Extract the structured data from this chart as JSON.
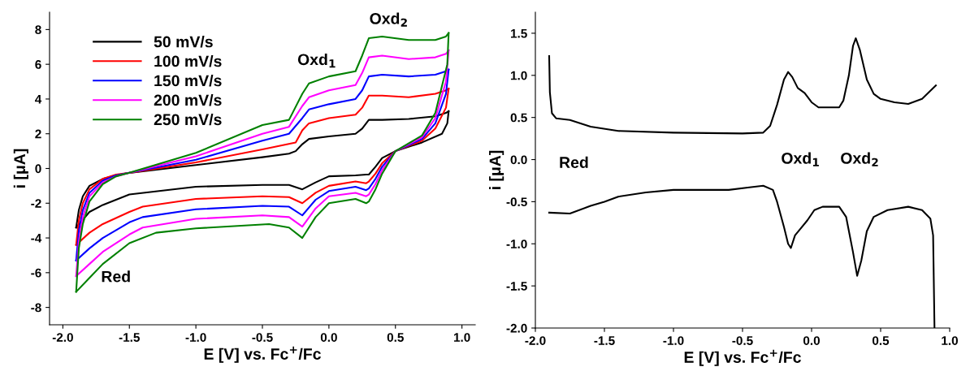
{
  "chart_data": [
    {
      "type": "line",
      "xlabel": "E [V] vs. Fc$^{+}$/Fc",
      "ylabel": "i [μA]",
      "xlim": [
        -2.1,
        1.1
      ],
      "ylim": [
        -9,
        9
      ],
      "xticks": [
        {
          "value": -2.0,
          "label": "-2.0"
        },
        {
          "value": -1.5,
          "label": "-1.5"
        },
        {
          "value": -1.0,
          "label": "-1.0"
        },
        {
          "value": -0.5,
          "label": "-0.5"
        },
        {
          "value": 0.0,
          "label": "0.0"
        },
        {
          "value": 0.5,
          "label": "0.5"
        },
        {
          "value": 1.0,
          "label": "1.0"
        }
      ],
      "yticks": [
        -8,
        -6,
        -4,
        -2,
        0,
        2,
        4,
        6,
        8
      ],
      "legend": "top left",
      "grid": false,
      "marker": "none",
      "line_style": "solid",
      "annotations": [
        "Oxd$_{1}$",
        "Oxd$_{2}$",
        "Red"
      ],
      "series": [
        {
          "name": "50 mV/s",
          "color": "#000000",
          "x": [
            -1.9,
            -1.88,
            -1.85,
            -1.8,
            -1.7,
            -1.6,
            -1.5,
            -1.0,
            -0.5,
            -0.3,
            -0.25,
            -0.2,
            -0.15,
            0.0,
            0.2,
            0.25,
            0.3,
            0.4,
            0.6,
            0.8,
            0.88,
            0.9
          ],
          "values": [
            -3.4,
            -2.4,
            -1.6,
            -1.0,
            -0.6,
            -0.4,
            -0.25,
            0.2,
            0.65,
            0.85,
            1.0,
            1.4,
            1.7,
            1.85,
            2.0,
            2.3,
            2.8,
            2.8,
            2.85,
            3.0,
            3.2,
            3.3
          ]
        },
        {
          "color": "#000000",
          "x": [
            0.9,
            0.89,
            0.85,
            0.7,
            0.5,
            0.4,
            0.35,
            0.3,
            0.28,
            0.2,
            0.0,
            -0.1,
            -0.2,
            -0.3,
            -0.5,
            -1.0,
            -1.5,
            -1.7,
            -1.8,
            -1.9
          ],
          "values": [
            3.3,
            2.6,
            2.0,
            1.5,
            1.0,
            0.6,
            0.1,
            -0.35,
            -0.35,
            -0.4,
            -0.45,
            -0.8,
            -1.2,
            -0.95,
            -0.95,
            -1.05,
            -1.5,
            -2.1,
            -2.5,
            -3.4
          ]
        },
        {
          "name": "100 mV/s",
          "color": "#ff0000",
          "x": [
            -1.9,
            -1.88,
            -1.85,
            -1.8,
            -1.7,
            -1.6,
            -1.5,
            -1.0,
            -0.5,
            -0.25,
            -0.2,
            -0.15,
            0.0,
            0.2,
            0.25,
            0.3,
            0.4,
            0.6,
            0.8,
            0.88,
            0.9
          ],
          "values": [
            -4.4,
            -3.0,
            -2.0,
            -1.2,
            -0.6,
            -0.35,
            -0.25,
            0.35,
            1.1,
            1.5,
            2.2,
            2.6,
            2.9,
            3.1,
            3.5,
            4.2,
            4.2,
            4.1,
            4.3,
            4.5,
            4.6
          ]
        },
        {
          "color": "#ff0000",
          "x": [
            0.9,
            0.88,
            0.8,
            0.7,
            0.5,
            0.4,
            0.35,
            0.3,
            0.28,
            0.2,
            0.0,
            -0.1,
            -0.2,
            -0.3,
            -0.5,
            -1.0,
            -1.4,
            -1.5,
            -1.7,
            -1.8,
            -1.9
          ],
          "values": [
            4.6,
            3.5,
            2.3,
            1.6,
            1.0,
            0.3,
            -0.3,
            -0.75,
            -0.85,
            -0.75,
            -1.0,
            -1.4,
            -2.0,
            -1.65,
            -1.6,
            -1.75,
            -2.2,
            -2.5,
            -3.2,
            -3.7,
            -4.4
          ]
        },
        {
          "name": "150 mV/s",
          "color": "#0000ff",
          "x": [
            -1.9,
            -1.88,
            -1.85,
            -1.8,
            -1.7,
            -1.6,
            -1.5,
            -1.0,
            -0.5,
            -0.3,
            -0.2,
            -0.15,
            0.0,
            0.2,
            0.25,
            0.3,
            0.4,
            0.6,
            0.8,
            0.88,
            0.9
          ],
          "values": [
            -5.3,
            -3.6,
            -2.4,
            -1.4,
            -0.7,
            -0.4,
            -0.25,
            0.5,
            1.6,
            2.0,
            2.9,
            3.4,
            3.7,
            4.0,
            4.5,
            5.3,
            5.4,
            5.3,
            5.4,
            5.6,
            5.7
          ]
        },
        {
          "color": "#0000ff",
          "x": [
            0.9,
            0.88,
            0.8,
            0.7,
            0.5,
            0.4,
            0.35,
            0.3,
            0.28,
            0.2,
            0.0,
            -0.1,
            -0.2,
            -0.3,
            -0.5,
            -1.0,
            -1.4,
            -1.5,
            -1.7,
            -1.8,
            -1.9
          ],
          "values": [
            5.7,
            4.3,
            2.6,
            1.7,
            1.0,
            0.1,
            -0.6,
            -1.15,
            -1.25,
            -1.05,
            -1.3,
            -1.8,
            -2.7,
            -2.2,
            -2.15,
            -2.35,
            -2.8,
            -3.1,
            -4.0,
            -4.6,
            -5.3
          ]
        },
        {
          "name": "200 mV/s",
          "color": "#ff00ff",
          "x": [
            -1.9,
            -1.88,
            -1.85,
            -1.8,
            -1.7,
            -1.6,
            -1.5,
            -1.0,
            -0.5,
            -0.3,
            -0.2,
            -0.15,
            0.0,
            0.2,
            0.25,
            0.3,
            0.4,
            0.6,
            0.8,
            0.88,
            0.9
          ],
          "values": [
            -6.2,
            -4.2,
            -2.8,
            -1.6,
            -0.8,
            -0.45,
            -0.25,
            0.7,
            2.0,
            2.4,
            3.6,
            4.1,
            4.5,
            4.8,
            5.5,
            6.4,
            6.5,
            6.3,
            6.4,
            6.6,
            6.8
          ]
        },
        {
          "color": "#ff00ff",
          "x": [
            0.9,
            0.88,
            0.8,
            0.7,
            0.5,
            0.4,
            0.35,
            0.3,
            0.28,
            0.2,
            0.0,
            -0.1,
            -0.2,
            -0.3,
            -0.5,
            -1.0,
            -1.4,
            -1.5,
            -1.7,
            -1.8,
            -1.9
          ],
          "values": [
            6.8,
            5.0,
            2.9,
            1.8,
            1.0,
            -0.1,
            -0.9,
            -1.5,
            -1.6,
            -1.4,
            -1.6,
            -2.3,
            -3.35,
            -2.8,
            -2.7,
            -2.9,
            -3.4,
            -3.8,
            -4.8,
            -5.5,
            -6.2
          ]
        },
        {
          "name": "250 mV/s",
          "color": "#008000",
          "x": [
            -1.9,
            -1.88,
            -1.85,
            -1.8,
            -1.7,
            -1.6,
            -1.5,
            -1.0,
            -0.5,
            -0.3,
            -0.2,
            -0.15,
            0.0,
            0.2,
            0.25,
            0.3,
            0.4,
            0.6,
            0.8,
            0.88,
            0.9
          ],
          "values": [
            -7.1,
            -4.6,
            -3.2,
            -1.9,
            -0.9,
            -0.45,
            -0.25,
            0.9,
            2.5,
            2.8,
            4.3,
            4.9,
            5.3,
            5.6,
            6.5,
            7.5,
            7.6,
            7.4,
            7.4,
            7.6,
            7.8
          ]
        },
        {
          "color": "#008000",
          "x": [
            0.9,
            0.89,
            0.8,
            0.7,
            0.5,
            0.4,
            0.35,
            0.3,
            0.28,
            0.2,
            0.0,
            -0.1,
            -0.2,
            -0.3,
            -0.45,
            -1.0,
            -1.3,
            -1.5,
            -1.7,
            -1.8,
            -1.9
          ],
          "values": [
            7.8,
            6.0,
            3.2,
            1.9,
            1.0,
            -0.3,
            -1.2,
            -1.9,
            -2.0,
            -1.75,
            -2.0,
            -2.8,
            -4.0,
            -3.4,
            -3.2,
            -3.45,
            -3.7,
            -4.3,
            -5.5,
            -6.3,
            -7.1
          ]
        }
      ]
    },
    {
      "type": "line",
      "xlabel": "E [V] vs. Fc$^{+}$/Fc",
      "ylabel": "i [μA]",
      "xlim": [
        -2.0,
        1.0
      ],
      "ylim": [
        -2.0,
        1.75
      ],
      "xticks": [
        {
          "value": -2.0,
          "label": "-2.0"
        },
        {
          "value": -1.5,
          "label": "-1.5"
        },
        {
          "value": -1.0,
          "label": "-1.0"
        },
        {
          "value": -0.5,
          "label": "-0.5"
        },
        {
          "value": 0.0,
          "label": "0.0"
        },
        {
          "value": 0.5,
          "label": "0.5"
        },
        {
          "value": 1.0,
          "label": "1.0"
        }
      ],
      "yticks": [
        {
          "value": -2.0,
          "label": "-2.0"
        },
        -1.5,
        {
          "value": -1.0,
          "label": "-1.0"
        },
        -0.5,
        {
          "value": 0.0,
          "label": "0.0"
        },
        0.5,
        {
          "value": 1.0,
          "label": "1.0"
        },
        1.5
      ],
      "grid": false,
      "marker": "none",
      "line_style": "solid",
      "annotations": [
        "Red",
        "Oxd$_{1}$",
        "Oxd$_{2}$"
      ],
      "series": [
        {
          "color": "#000000",
          "x": [
            -1.9,
            -1.895,
            -1.88,
            -1.85,
            -1.75,
            -1.6,
            -1.4,
            -1.0,
            -0.5,
            -0.35,
            -0.3,
            -0.25,
            -0.2,
            -0.17,
            -0.14,
            -0.1,
            -0.05,
            0.0,
            0.05,
            0.2,
            0.23,
            0.27,
            0.3,
            0.32,
            0.35,
            0.4,
            0.45,
            0.5,
            0.6,
            0.7,
            0.8,
            0.9
          ],
          "values": [
            1.23,
            0.8,
            0.55,
            0.49,
            0.47,
            0.39,
            0.34,
            0.32,
            0.31,
            0.32,
            0.4,
            0.65,
            0.95,
            1.04,
            0.98,
            0.85,
            0.79,
            0.68,
            0.62,
            0.62,
            0.7,
            1.0,
            1.35,
            1.44,
            1.3,
            0.95,
            0.78,
            0.72,
            0.68,
            0.66,
            0.72,
            0.88
          ]
        },
        {
          "color": "#000000",
          "x": [
            -1.9,
            -1.75,
            -1.6,
            -1.5,
            -1.4,
            -1.2,
            -1.0,
            -0.6,
            -0.45,
            -0.35,
            -0.28,
            -0.25,
            -0.2,
            -0.17,
            -0.15,
            -0.12,
            -0.08,
            -0.03,
            0.02,
            0.08,
            0.2,
            0.25,
            0.3,
            0.33,
            0.36,
            0.4,
            0.45,
            0.55,
            0.7,
            0.8,
            0.86,
            0.88,
            0.89
          ],
          "values": [
            -0.63,
            -0.64,
            -0.55,
            -0.5,
            -0.44,
            -0.39,
            -0.36,
            -0.36,
            -0.33,
            -0.31,
            -0.36,
            -0.5,
            -0.8,
            -1.0,
            -1.05,
            -0.9,
            -0.82,
            -0.72,
            -0.6,
            -0.56,
            -0.56,
            -0.68,
            -1.1,
            -1.38,
            -1.2,
            -0.85,
            -0.68,
            -0.6,
            -0.56,
            -0.6,
            -0.7,
            -0.9,
            -2.0
          ]
        }
      ]
    }
  ]
}
